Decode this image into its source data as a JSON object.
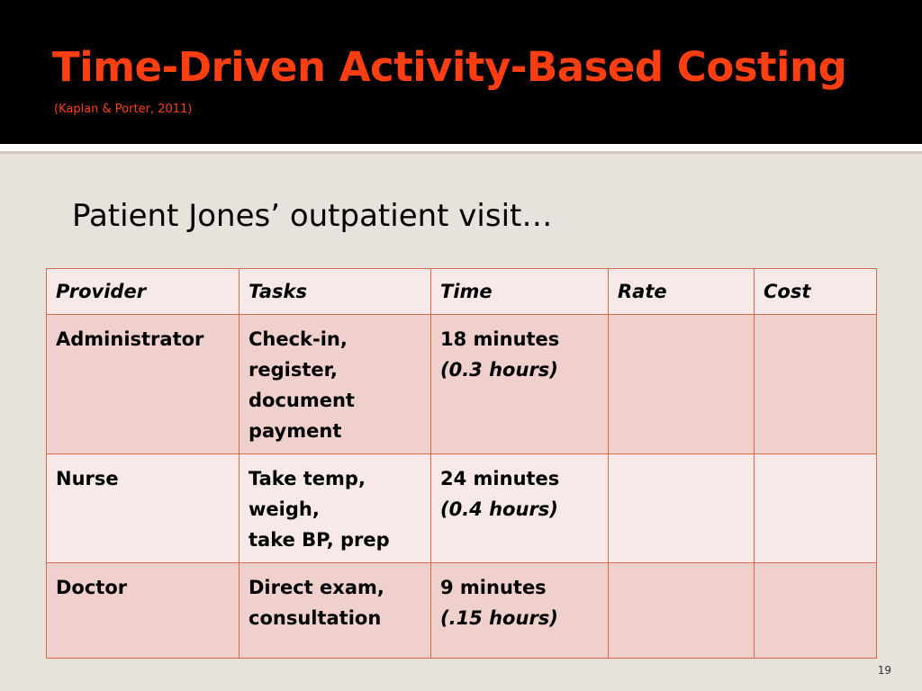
{
  "slide": {
    "title": "Time-Driven Activity-Based Costing",
    "subtitle": "(Kaplan & Porter, 2011)",
    "heading": "Patient Jones’ outpatient visit…",
    "page_number": "19"
  },
  "table": {
    "headers": [
      "Provider",
      "Tasks",
      "Time",
      "Rate",
      "Cost"
    ],
    "rows": [
      {
        "provider": "Administrator",
        "tasks": [
          "Check-in,",
          "register,",
          "document",
          "payment"
        ],
        "time": "18 minutes",
        "hours": "(0.3 hours)",
        "rate": "",
        "cost": ""
      },
      {
        "provider": "Nurse",
        "tasks": [
          "Take temp,",
          "weigh,",
          "take BP, prep"
        ],
        "time": "24 minutes",
        "hours": "(0.4 hours)",
        "rate": "",
        "cost": ""
      },
      {
        "provider": "Doctor",
        "tasks": [
          "Direct exam,",
          "consultation"
        ],
        "time": "9 minutes",
        "hours": "(.15 hours)",
        "rate": "",
        "cost": ""
      }
    ]
  },
  "colors": {
    "title": "#ff3f12",
    "table_border": "#d9694a",
    "row_dark": "#efd0cd",
    "row_light": "#f6e9e8",
    "background": "#e7e2dc"
  }
}
